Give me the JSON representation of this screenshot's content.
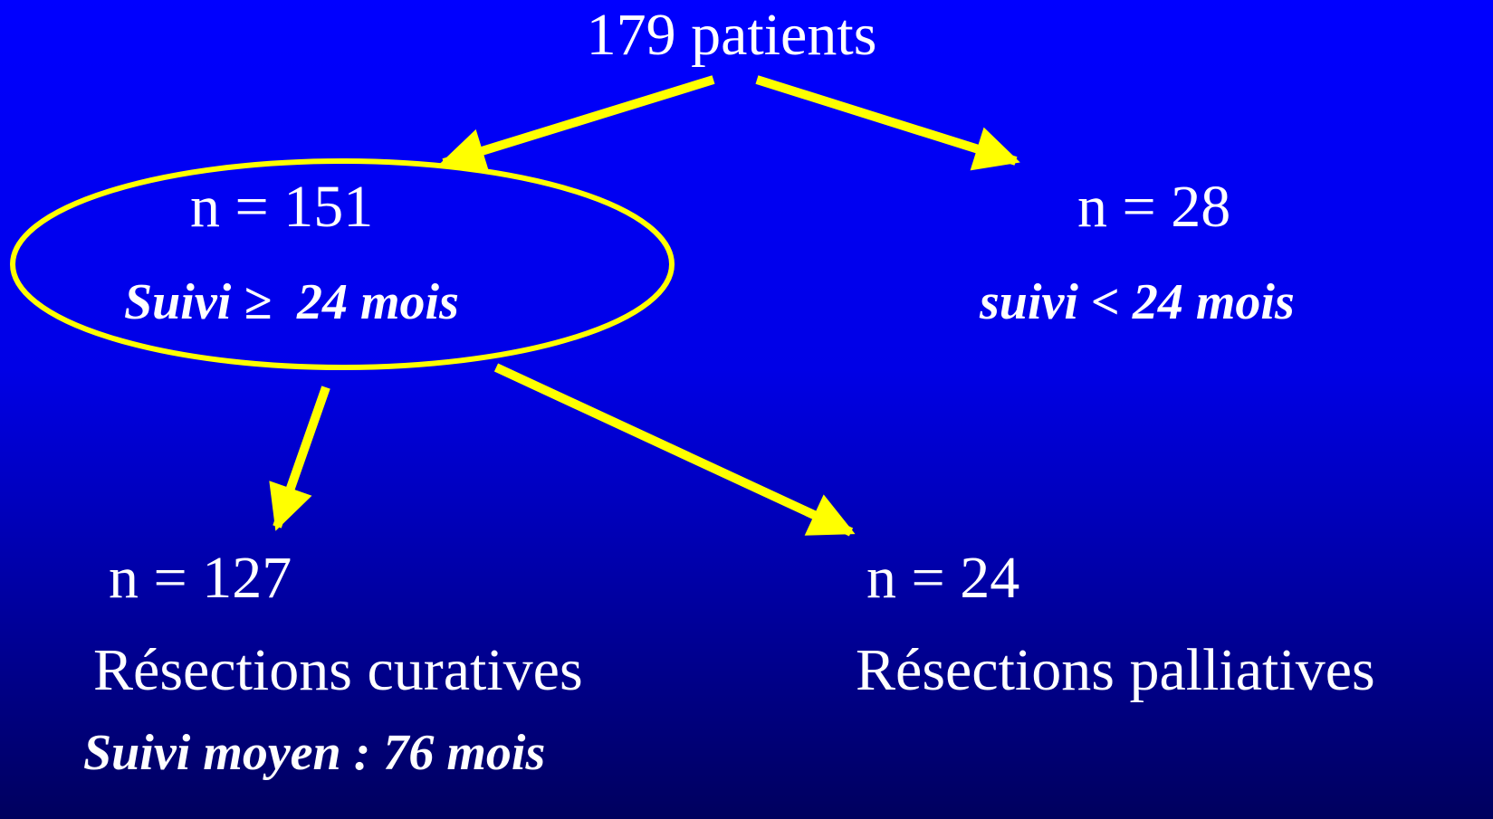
{
  "nodes": [
    {
      "label": "179 patients"
    },
    {
      "label": "n = 151",
      "note": "Suivi ≥  24 mois"
    },
    {
      "label": "n = 28",
      "note": "suivi < 24 mois"
    },
    {
      "label": "n = 127",
      "title": "Résections curatives",
      "note": "Suivi moyen : 76 mois"
    },
    {
      "label": "n = 24",
      "title": "Résections palliatives"
    }
  ]
}
